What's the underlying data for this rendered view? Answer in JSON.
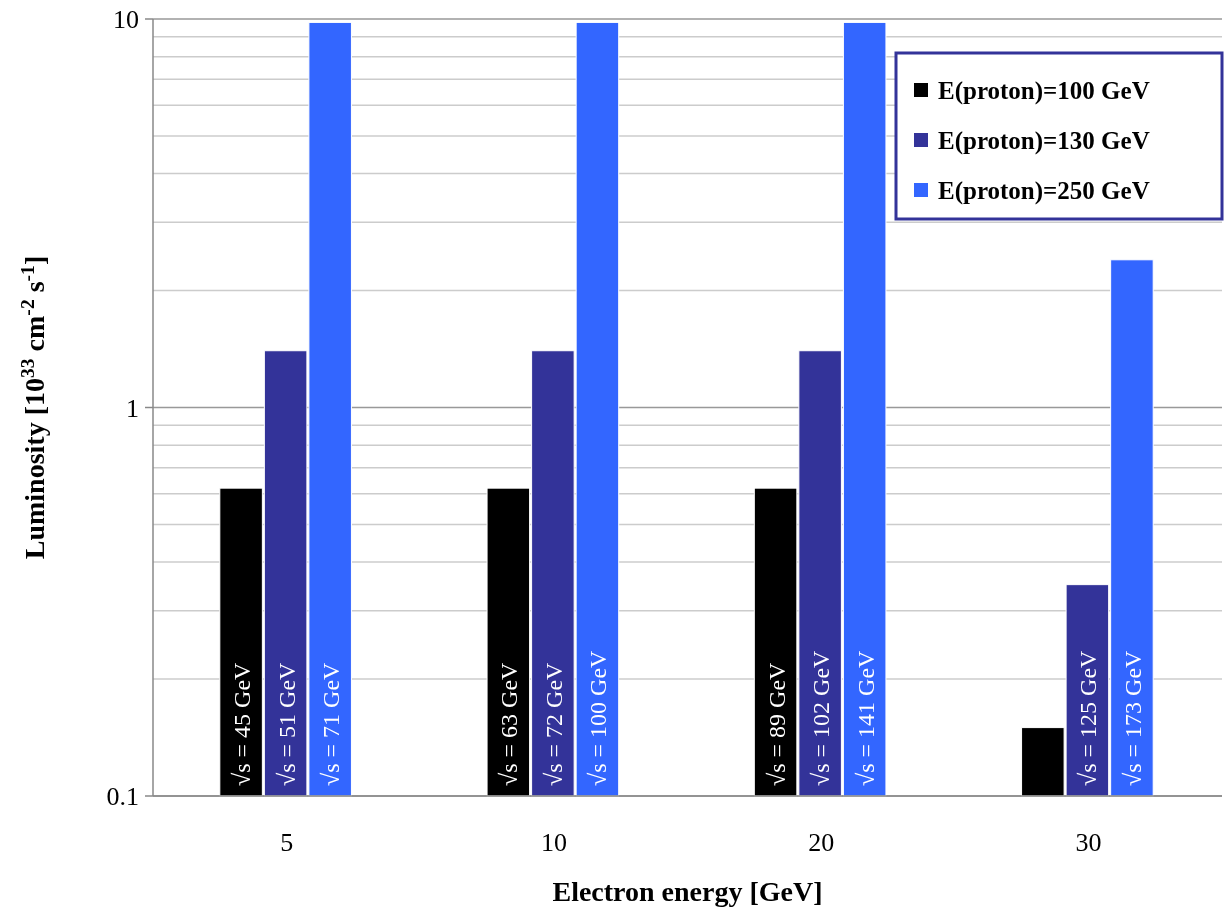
{
  "chart_data": {
    "type": "bar",
    "xlabel": "Electron energy [GeV]",
    "ylabel": "Luminosity [10$^{33}$ cm$^{-2}$ s$^{-1}$]",
    "categories": [
      "5",
      "10",
      "20",
      "30"
    ],
    "series": [
      {
        "name": "E(proton)=100 GeV",
        "color": "#000000",
        "values": [
          0.62,
          0.62,
          0.62,
          0.15
        ]
      },
      {
        "name": "E(proton)=130 GeV",
        "color": "#333399",
        "values": [
          1.4,
          1.4,
          1.4,
          0.35
        ]
      },
      {
        "name": "E(proton)=250 GeV",
        "color": "#3366ff",
        "values": [
          9.8,
          9.8,
          9.8,
          2.4
        ]
      }
    ],
    "annotations": [
      "√s = 45 GeV",
      "√s = 51 GeV",
      "√s = 71 GeV",
      "√s = 63 GeV",
      "√s = 72 GeV",
      "√s = 100 GeV",
      "√s = 89 GeV",
      "√s = 102 GeV",
      "√s = 141 GeV",
      "√s = 125 GeV",
      "√s = 173 GeV"
    ],
    "log": "y",
    "ylim": [
      0.1,
      10
    ],
    "yticks": [
      0.1,
      1,
      10
    ],
    "grid": "y",
    "legend": "top right"
  }
}
